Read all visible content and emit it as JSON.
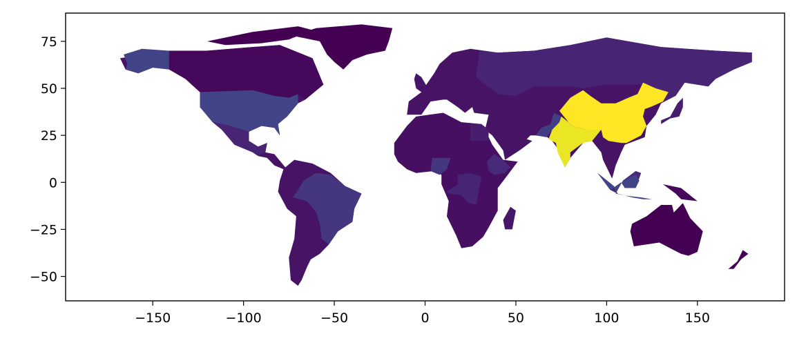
{
  "chart_data": {
    "type": "choropleth",
    "projection": "plate-carree (longitude / latitude)",
    "xlim": [
      -198,
      198
    ],
    "ylim": [
      -63,
      90
    ],
    "xticks": [
      -150,
      -100,
      -50,
      0,
      50,
      100,
      150
    ],
    "yticks": [
      -50,
      -25,
      0,
      25,
      50,
      75
    ],
    "xtick_labels": [
      "−150",
      "−100",
      "−50",
      "0",
      "50",
      "100",
      "150"
    ],
    "ytick_labels": [
      "−50",
      "−25",
      "0",
      "25",
      "50",
      "75"
    ],
    "colormap": "viridis",
    "legend": "none",
    "grid": false,
    "colors": {
      "lowest": "#440154",
      "low": "#471f6f",
      "low_mid": "#482878",
      "mid_low": "#3e4989",
      "highest": "#fde725",
      "frame": "#000000",
      "background": "#ffffff"
    },
    "regions": [
      {
        "name": "china-region",
        "level": 1.0
      },
      {
        "name": "india-region",
        "level": 0.97
      },
      {
        "name": "usa-region",
        "level": 0.2
      },
      {
        "name": "alaska-region",
        "level": 0.2
      },
      {
        "name": "indonesia-region",
        "level": 0.2
      },
      {
        "name": "pakistan-region",
        "level": 0.18
      },
      {
        "name": "nigeria-region",
        "level": 0.16
      },
      {
        "name": "brazil-region",
        "level": 0.16
      },
      {
        "name": "russia-region",
        "level": 0.1
      },
      {
        "name": "ethiopia-region",
        "level": 0.12
      },
      {
        "name": "congo-region",
        "level": 0.1
      },
      {
        "name": "egypt-region",
        "level": 0.08
      },
      {
        "name": "mexico-region",
        "level": 0.1
      },
      {
        "name": "canada-region",
        "level": 0.02
      },
      {
        "name": "greenland-region",
        "level": 0.0
      },
      {
        "name": "australia-region",
        "level": 0.0
      }
    ]
  }
}
